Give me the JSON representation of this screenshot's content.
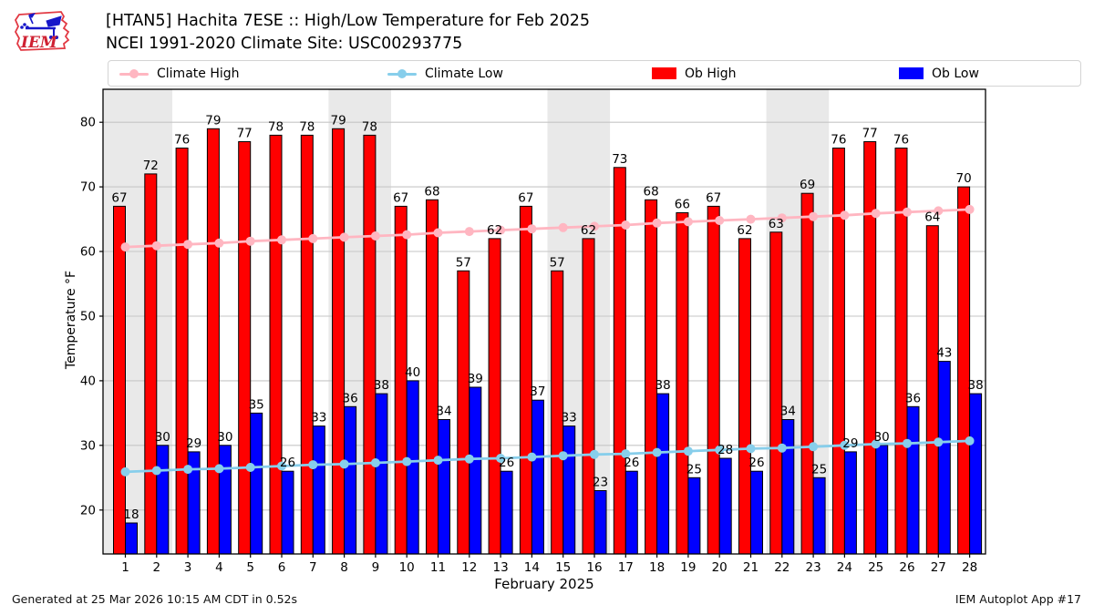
{
  "header": {
    "title": "[HTAN5] Hachita 7ESE :: High/Low Temperature for Feb 2025",
    "subtitle": "NCEI 1991-2020 Climate Site: USC00293775"
  },
  "legend": {
    "items": [
      {
        "label": "Climate High",
        "marker": "line",
        "color": "#ffb6c1"
      },
      {
        "label": "Climate Low",
        "marker": "line",
        "color": "#87ceeb"
      },
      {
        "label": "Ob High",
        "marker": "rect",
        "color": "#ff0000"
      },
      {
        "label": "Ob Low",
        "marker": "rect",
        "color": "#0000ff"
      }
    ]
  },
  "footer": {
    "generated": "Generated at 25 Mar 2026 10:15 AM CDT in 0.52s",
    "app": "IEM Autoplot App #17"
  },
  "colors": {
    "ob_high": "#ff0000",
    "ob_low": "#0000ff",
    "climate_high": "#ffb6c1",
    "climate_low": "#87ceeb",
    "weekend_band": "#e9e9e9",
    "gridline": "#c6c6c6",
    "frame": "#000000"
  },
  "chart_data": {
    "type": "bar",
    "title": "[HTAN5] Hachita 7ESE :: High/Low Temperature for Feb 2025",
    "xlabel": "February 2025",
    "ylabel": "Temperature °F",
    "ylim": [
      13.2,
      85.1
    ],
    "yticks": [
      20,
      30,
      40,
      50,
      60,
      70,
      80
    ],
    "grid": true,
    "legend_position": "top",
    "categories": [
      1,
      2,
      3,
      4,
      5,
      6,
      7,
      8,
      9,
      10,
      11,
      12,
      13,
      14,
      15,
      16,
      17,
      18,
      19,
      20,
      21,
      22,
      23,
      24,
      25,
      26,
      27,
      28
    ],
    "weekend_shading_days": [
      [
        1,
        2
      ],
      [
        8,
        9
      ],
      [
        15,
        16
      ],
      [
        22,
        23
      ]
    ],
    "series": [
      {
        "name": "Ob High",
        "type": "bar",
        "color": "#ff0000",
        "values": [
          67,
          72,
          76,
          79,
          77,
          78,
          78,
          79,
          78,
          67,
          68,
          57,
          62,
          67,
          57,
          62,
          73,
          68,
          66,
          67,
          62,
          63,
          69,
          76,
          77,
          76,
          64,
          70
        ]
      },
      {
        "name": "Ob Low",
        "type": "bar",
        "color": "#0000ff",
        "values": [
          18,
          30,
          29,
          30,
          35,
          26,
          33,
          36,
          38,
          40,
          34,
          39,
          26,
          37,
          33,
          23,
          26,
          38,
          25,
          28,
          26,
          34,
          25,
          29,
          30,
          36,
          43,
          38
        ]
      },
      {
        "name": "Climate High",
        "type": "line",
        "color": "#ffb6c1",
        "values": [
          60.7,
          60.9,
          61.1,
          61.3,
          61.6,
          61.8,
          62.0,
          62.2,
          62.4,
          62.6,
          62.9,
          63.1,
          63.3,
          63.5,
          63.7,
          63.9,
          64.1,
          64.4,
          64.6,
          64.8,
          65.0,
          65.2,
          65.4,
          65.6,
          65.9,
          66.1,
          66.3,
          66.5
        ]
      },
      {
        "name": "Climate Low",
        "type": "line",
        "color": "#87ceeb",
        "values": [
          25.9,
          26.1,
          26.3,
          26.4,
          26.6,
          26.8,
          27.0,
          27.1,
          27.3,
          27.5,
          27.7,
          27.9,
          28.0,
          28.2,
          28.4,
          28.6,
          28.7,
          28.9,
          29.1,
          29.3,
          29.5,
          29.6,
          29.8,
          30.0,
          30.2,
          30.3,
          30.5,
          30.7
        ]
      }
    ]
  }
}
